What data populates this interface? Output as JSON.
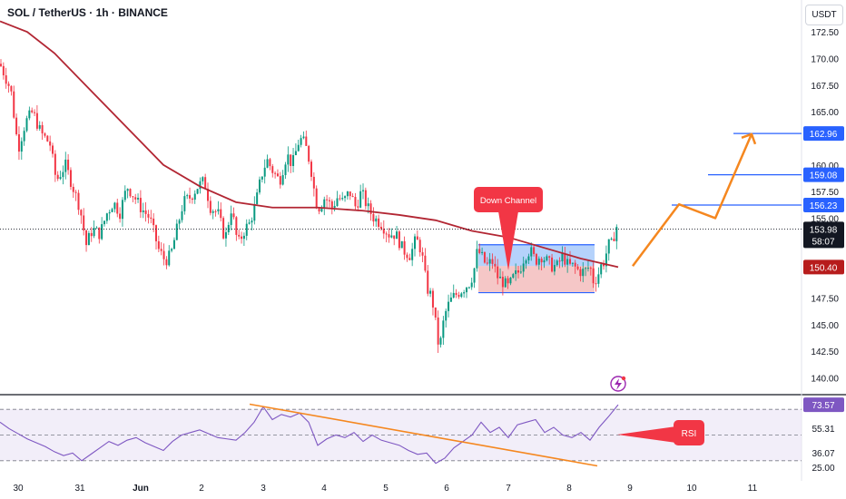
{
  "header": {
    "symbol_title": "SOL / TetherUS · 1h · BINANCE",
    "currency_button": "USDT"
  },
  "chart_data": {
    "type": "candlestick",
    "price_axis": {
      "ticks": [
        172.5,
        170.0,
        167.5,
        165.0,
        160.0,
        157.5,
        155.0,
        147.5,
        145.0,
        142.5,
        140.0
      ],
      "tick_labels": [
        "172.50",
        "170.00",
        "167.50",
        "165.00",
        "160.00",
        "157.50",
        "155.00",
        "147.50",
        "145.00",
        "142.50",
        "140.00"
      ],
      "range": [
        138.5,
        175.5
      ]
    },
    "time_axis": {
      "labels": [
        "30",
        "31",
        "Jun",
        "2",
        "3",
        "4",
        "5",
        "6",
        "7",
        "8",
        "9",
        "10",
        "11"
      ],
      "bold_labels": [
        "Jun"
      ]
    },
    "current_price": {
      "value": "153.98",
      "countdown": "58:07",
      "color": "#131722"
    },
    "price_tags": [
      {
        "value": 162.96,
        "label": "162.96",
        "color": "#2962ff"
      },
      {
        "value": 159.08,
        "label": "159.08",
        "color": "#2962ff"
      },
      {
        "value": 156.23,
        "label": "156.23",
        "color": "#2962ff"
      },
      {
        "value": 150.4,
        "label": "150.40",
        "color": "#b71c1c"
      }
    ],
    "candle_anchors": [
      [
        0,
        169.5
      ],
      [
        5,
        168.5
      ],
      [
        12,
        167.0
      ],
      [
        20,
        161.5
      ],
      [
        28,
        164.0
      ],
      [
        36,
        165.0
      ],
      [
        45,
        163.0
      ],
      [
        55,
        162.0
      ],
      [
        62,
        158.5
      ],
      [
        72,
        160.0
      ],
      [
        80,
        158.0
      ],
      [
        88,
        156.0
      ],
      [
        95,
        152.5
      ],
      [
        102,
        154.0
      ],
      [
        110,
        153.5
      ],
      [
        118,
        155.5
      ],
      [
        125,
        156.5
      ],
      [
        132,
        155.5
      ],
      [
        140,
        158.0
      ],
      [
        148,
        157.0
      ],
      [
        155,
        156.0
      ],
      [
        165,
        155.0
      ],
      [
        175,
        152.0
      ],
      [
        182,
        151.0
      ],
      [
        188,
        151.5
      ],
      [
        195,
        154.0
      ],
      [
        202,
        156.5
      ],
      [
        210,
        157.0
      ],
      [
        218,
        158.0
      ],
      [
        225,
        158.5
      ],
      [
        232,
        156.0
      ],
      [
        240,
        155.5
      ],
      [
        248,
        153.0
      ],
      [
        255,
        156.0
      ],
      [
        262,
        152.5
      ],
      [
        270,
        154.0
      ],
      [
        275,
        154.5
      ],
      [
        282,
        156.5
      ],
      [
        288,
        159.0
      ],
      [
        294,
        160.5
      ],
      [
        300,
        159.5
      ],
      [
        308,
        158.5
      ],
      [
        316,
        161.0
      ],
      [
        322,
        160.0
      ],
      [
        330,
        162.5
      ],
      [
        336,
        162.0
      ],
      [
        342,
        160.0
      ],
      [
        348,
        156.5
      ],
      [
        352,
        156.0
      ],
      [
        358,
        157.0
      ],
      [
        366,
        156.0
      ],
      [
        372,
        157.0
      ],
      [
        378,
        156.5
      ],
      [
        385,
        157.5
      ],
      [
        392,
        156.0
      ],
      [
        398,
        157.5
      ],
      [
        405,
        156.0
      ],
      [
        412,
        155.0
      ],
      [
        420,
        154.5
      ],
      [
        428,
        153.5
      ],
      [
        436,
        153.5
      ],
      [
        444,
        152.0
      ],
      [
        452,
        151.5
      ],
      [
        458,
        153.0
      ],
      [
        462,
        152.5
      ],
      [
        466,
        151.0
      ],
      [
        470,
        148.5
      ],
      [
        476,
        147.5
      ],
      [
        480,
        145.0
      ],
      [
        484,
        142.5
      ],
      [
        488,
        145.0
      ],
      [
        492,
        146.5
      ],
      [
        498,
        147.5
      ],
      [
        505,
        148.0
      ],
      [
        512,
        148.5
      ],
      [
        518,
        149.0
      ],
      [
        522,
        150.0
      ],
      [
        526,
        152.0
      ],
      [
        530,
        151.5
      ],
      [
        536,
        150.5
      ],
      [
        542,
        151.0
      ],
      [
        548,
        149.5
      ],
      [
        554,
        149.0
      ],
      [
        560,
        148.5
      ],
      [
        566,
        149.5
      ],
      [
        572,
        150.0
      ],
      [
        578,
        151.5
      ],
      [
        584,
        152.0
      ],
      [
        590,
        151.0
      ],
      [
        596,
        151.5
      ],
      [
        602,
        151.0
      ],
      [
        608,
        150.5
      ],
      [
        614,
        150.5
      ],
      [
        620,
        151.5
      ],
      [
        626,
        150.5
      ],
      [
        632,
        150.5
      ],
      [
        638,
        150.0
      ],
      [
        644,
        150.0
      ],
      [
        650,
        150.5
      ],
      [
        654,
        149.0
      ],
      [
        658,
        149.5
      ],
      [
        662,
        150.5
      ],
      [
        666,
        151.0
      ],
      [
        670,
        152.5
      ],
      [
        674,
        152.5
      ],
      [
        678,
        154.0
      ],
      [
        681,
        154.5
      ]
    ],
    "moving_average": {
      "color": "#b22633",
      "points": [
        [
          0,
          173.5
        ],
        [
          30,
          172.5
        ],
        [
          60,
          170.5
        ],
        [
          100,
          167.0
        ],
        [
          140,
          163.5
        ],
        [
          180,
          160.0
        ],
        [
          220,
          158.0
        ],
        [
          260,
          156.5
        ],
        [
          300,
          156.0
        ],
        [
          350,
          156.0
        ],
        [
          400,
          155.7
        ],
        [
          440,
          155.3
        ],
        [
          480,
          154.8
        ],
        [
          520,
          153.8
        ],
        [
          560,
          153.2
        ],
        [
          600,
          152.2
        ],
        [
          640,
          151.2
        ],
        [
          681,
          150.4
        ]
      ]
    },
    "down_channel": {
      "label": "Down Channel",
      "label_color": "#f23645",
      "upper_band": [
        152.5,
        150.5
      ],
      "lower_band": [
        150.5,
        148.0
      ],
      "upper_fill": "#5b9cf6",
      "lower_fill": "#e57373",
      "border_color": "#2962ff"
    },
    "projection": {
      "color": "#f5871f",
      "path": [
        [
          697,
          150.5
        ],
        [
          748,
          156.3
        ],
        [
          788,
          155.0
        ],
        [
          828,
          162.9
        ]
      ]
    },
    "rsi": {
      "label": "RSI",
      "label_color": "#f23645",
      "tags": [
        {
          "value": 73.57,
          "label": "73.57",
          "color": "#7e57c2"
        },
        {
          "value": 55.31,
          "label": "55.31",
          "color": "#131722"
        },
        {
          "value": 36.07,
          "label": "36.07",
          "color": "#131722"
        },
        {
          "value": 25.0,
          "label": "25.00",
          "color": "#131722"
        }
      ],
      "level_lines": [
        70,
        50,
        30
      ],
      "trendline_color": "#f5871f",
      "line_color": "#7e57c2",
      "band_fill": "#ede7f6",
      "range": [
        20,
        80
      ],
      "points": [
        [
          0,
          60
        ],
        [
          10,
          55
        ],
        [
          20,
          51
        ],
        [
          30,
          47
        ],
        [
          40,
          44
        ],
        [
          50,
          41
        ],
        [
          60,
          37
        ],
        [
          70,
          34
        ],
        [
          80,
          36
        ],
        [
          90,
          30
        ],
        [
          100,
          35
        ],
        [
          110,
          40
        ],
        [
          120,
          45
        ],
        [
          130,
          42
        ],
        [
          140,
          46
        ],
        [
          150,
          48
        ],
        [
          160,
          44
        ],
        [
          170,
          41
        ],
        [
          180,
          38
        ],
        [
          190,
          45
        ],
        [
          200,
          50
        ],
        [
          210,
          52
        ],
        [
          220,
          54
        ],
        [
          230,
          51
        ],
        [
          240,
          48
        ],
        [
          250,
          47
        ],
        [
          260,
          46
        ],
        [
          270,
          52
        ],
        [
          280,
          60
        ],
        [
          290,
          72
        ],
        [
          300,
          62
        ],
        [
          310,
          66
        ],
        [
          320,
          64
        ],
        [
          330,
          67
        ],
        [
          340,
          60
        ],
        [
          350,
          42
        ],
        [
          360,
          47
        ],
        [
          370,
          50
        ],
        [
          380,
          48
        ],
        [
          390,
          52
        ],
        [
          400,
          45
        ],
        [
          410,
          50
        ],
        [
          420,
          46
        ],
        [
          430,
          44
        ],
        [
          440,
          42
        ],
        [
          450,
          38
        ],
        [
          460,
          35
        ],
        [
          470,
          36
        ],
        [
          480,
          28
        ],
        [
          490,
          32
        ],
        [
          500,
          40
        ],
        [
          510,
          45
        ],
        [
          520,
          50
        ],
        [
          530,
          60
        ],
        [
          540,
          52
        ],
        [
          550,
          56
        ],
        [
          560,
          48
        ],
        [
          570,
          58
        ],
        [
          580,
          60
        ],
        [
          590,
          62
        ],
        [
          600,
          52
        ],
        [
          610,
          56
        ],
        [
          620,
          50
        ],
        [
          630,
          48
        ],
        [
          640,
          52
        ],
        [
          650,
          46
        ],
        [
          660,
          56
        ],
        [
          670,
          64
        ],
        [
          681,
          73.57
        ]
      ],
      "trendline": [
        [
          275,
          74
        ],
        [
          658,
          26
        ]
      ]
    },
    "icon_name": "lightning-bolt-icon",
    "bull_color": "#089981",
    "bear_color": "#f23645",
    "grid": false,
    "title": "SOL / TetherUS · 1h · BINANCE",
    "xlabel": "",
    "ylabel": ""
  }
}
